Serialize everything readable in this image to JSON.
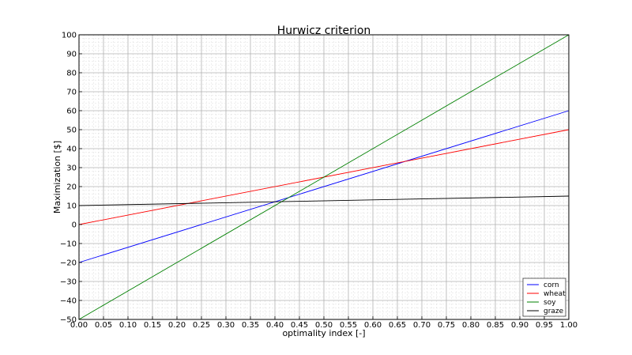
{
  "chart_data": {
    "type": "line",
    "title": "Hurwicz criterion",
    "xlabel": "optimality index [-]",
    "ylabel": "Maximization [$]",
    "xlim": [
      0.0,
      1.0
    ],
    "ylim": [
      -50,
      100
    ],
    "xticks": [
      "0.00",
      "0.05",
      "0.10",
      "0.15",
      "0.20",
      "0.25",
      "0.30",
      "0.35",
      "0.40",
      "0.45",
      "0.50",
      "0.55",
      "0.60",
      "0.65",
      "0.70",
      "0.75",
      "0.80",
      "0.85",
      "0.90",
      "0.95",
      "1.00"
    ],
    "yticks": [
      "−50",
      "−40",
      "−30",
      "−20",
      "−10",
      "0",
      "10",
      "20",
      "30",
      "40",
      "50",
      "60",
      "70",
      "80",
      "90",
      "100"
    ],
    "minor_grid": true,
    "grid": true,
    "legend_position": "bottom-right",
    "series": [
      {
        "name": "corn",
        "color": "#0000ff",
        "x": [
          0.0,
          1.0
        ],
        "y": [
          -20,
          60
        ]
      },
      {
        "name": "wheat",
        "color": "#ff0000",
        "x": [
          0.0,
          1.0
        ],
        "y": [
          0,
          50
        ]
      },
      {
        "name": "soy",
        "color": "#008000",
        "x": [
          0.0,
          1.0
        ],
        "y": [
          -50,
          100
        ]
      },
      {
        "name": "graze",
        "color": "#000000",
        "x": [
          0.0,
          1.0
        ],
        "y": [
          10,
          15
        ]
      }
    ]
  }
}
